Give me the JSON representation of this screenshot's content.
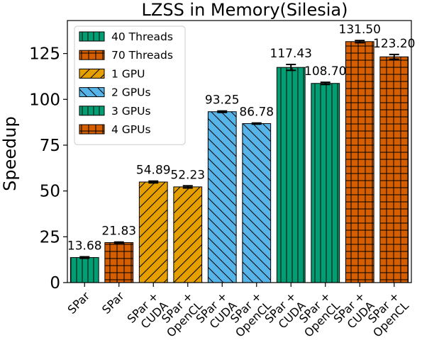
{
  "chart_data": {
    "type": "bar",
    "title": "LZSS in Memory(Silesia)",
    "xlabel": "",
    "ylabel": "Speedup",
    "ylim": [
      0,
      143
    ],
    "yticks": [
      0,
      25,
      50,
      75,
      100,
      125
    ],
    "grid": false,
    "legend_position": "top-left",
    "categories": [
      "SPar",
      "SPar",
      "SPar +\nCUDA",
      "SPar +\nOpenCL",
      "SPar +\nCUDA",
      "SPar +\nOpenCL",
      "SPar +\nCUDA",
      "SPar +\nOpenCL",
      "SPar +\nCUDA",
      "SPar +\nOpenCL"
    ],
    "values": [
      13.68,
      21.83,
      54.89,
      52.23,
      93.25,
      86.78,
      117.43,
      108.7,
      131.5,
      123.2
    ],
    "value_labels": [
      "13.68",
      "21.83",
      "54.89",
      "52.23",
      "93.25",
      "86.78",
      "117.43",
      "108.70",
      "131.50",
      "123.20"
    ],
    "error": [
      0.4,
      0.3,
      0.5,
      0.6,
      0.4,
      0.3,
      1.6,
      0.6,
      0.6,
      1.3
    ],
    "bar_series": [
      0,
      1,
      2,
      2,
      3,
      3,
      4,
      4,
      5,
      5
    ],
    "series": [
      {
        "name": "40 Threads",
        "color": "#009e73",
        "hatch": "vertical"
      },
      {
        "name": "70 Threads",
        "color": "#d55e00",
        "hatch": "grid"
      },
      {
        "name": "1 GPU",
        "color": "#e69f00",
        "hatch": "diagonal-up"
      },
      {
        "name": "2 GPUs",
        "color": "#56b4e9",
        "hatch": "diagonal-down"
      },
      {
        "name": "3 GPUs",
        "color": "#009e73",
        "hatch": "vertical"
      },
      {
        "name": "4 GPUs",
        "color": "#d55e00",
        "hatch": "grid"
      }
    ]
  }
}
